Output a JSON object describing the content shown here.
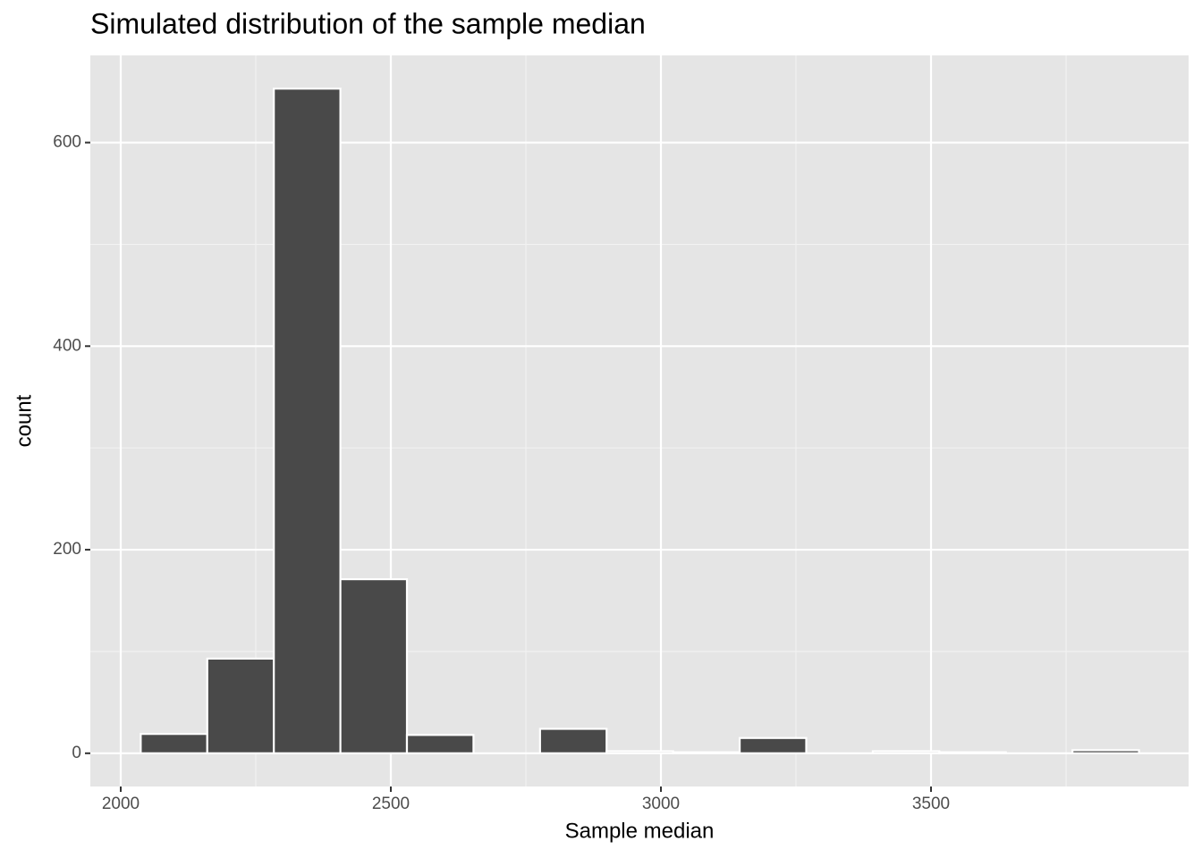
{
  "chart_data": {
    "type": "histogram",
    "title": "Simulated distribution of the sample median",
    "x_label": "Sample median",
    "y_label": "count",
    "bins": [
      2037,
      2160.2,
      2283.4,
      2406.6,
      2529.8,
      2653,
      2776.2,
      2899.4,
      3022.6,
      3145.8,
      3269,
      3392.2,
      3515.4,
      3638.6,
      3761.8,
      3885
    ],
    "values": [
      19,
      93,
      653,
      171,
      18,
      0,
      24,
      2,
      1,
      15,
      0,
      2,
      1,
      0,
      3
    ],
    "color": "#494949",
    "xlim": [
      1943.7,
      3976.8
    ],
    "ylim": [
      -32.65,
      685.65
    ],
    "xticks": [
      2000,
      2500,
      3000,
      3500
    ],
    "yticks": [
      0,
      200,
      400,
      600
    ],
    "xminor": [
      2250,
      2750,
      3250,
      3750
    ],
    "yminor": [
      100,
      300,
      500
    ],
    "grid": true
  }
}
